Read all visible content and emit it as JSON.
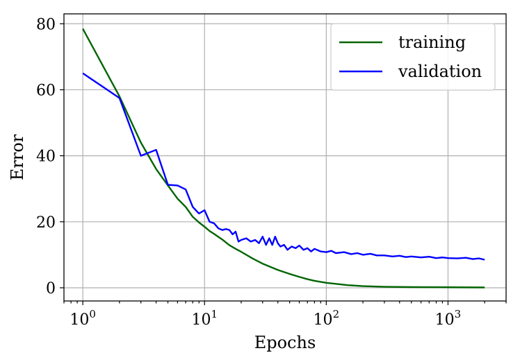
{
  "chart_data": {
    "type": "line",
    "title": "",
    "xlabel": "Epochs",
    "ylabel": "Error",
    "xscale": "log",
    "xlim": [
      0.7,
      3000
    ],
    "ylim": [
      -4,
      83
    ],
    "grid": true,
    "legend_position": "top-right",
    "x_ticks": [
      {
        "base": "10",
        "exp": "0",
        "value": 1
      },
      {
        "base": "10",
        "exp": "1",
        "value": 10
      },
      {
        "base": "10",
        "exp": "2",
        "value": 100
      },
      {
        "base": "10",
        "exp": "3",
        "value": 1000
      }
    ],
    "y_ticks": [
      {
        "label": "0",
        "value": 0
      },
      {
        "label": "20",
        "value": 20
      },
      {
        "label": "40",
        "value": 40
      },
      {
        "label": "60",
        "value": 60
      },
      {
        "label": "80",
        "value": 80
      }
    ],
    "series": [
      {
        "name": "training",
        "color": "#006400",
        "points": [
          [
            1,
            78.5
          ],
          [
            2,
            58
          ],
          [
            3,
            44
          ],
          [
            4,
            36
          ],
          [
            5,
            31
          ],
          [
            6,
            27
          ],
          [
            7,
            24.5
          ],
          [
            8,
            21.5
          ],
          [
            9,
            19.8
          ],
          [
            10,
            18.5
          ],
          [
            11,
            17.2
          ],
          [
            12,
            16.3
          ],
          [
            14,
            14.6
          ],
          [
            16,
            12.9
          ],
          [
            18,
            11.8
          ],
          [
            20,
            10.9
          ],
          [
            25,
            8.8
          ],
          [
            30,
            7.3
          ],
          [
            40,
            5.4
          ],
          [
            50,
            4.2
          ],
          [
            60,
            3.3
          ],
          [
            70,
            2.6
          ],
          [
            80,
            2.1
          ],
          [
            100,
            1.5
          ],
          [
            150,
            0.8
          ],
          [
            200,
            0.5
          ],
          [
            300,
            0.3
          ],
          [
            500,
            0.2
          ],
          [
            1000,
            0.15
          ],
          [
            2000,
            0.1
          ]
        ]
      },
      {
        "name": "validation",
        "color": "#0000ff",
        "points": [
          [
            1,
            65
          ],
          [
            2,
            57.5
          ],
          [
            3,
            40
          ],
          [
            4,
            41.8
          ],
          [
            5,
            31.2
          ],
          [
            6,
            31
          ],
          [
            7,
            29.8
          ],
          [
            8,
            24.5
          ],
          [
            9,
            22.5
          ],
          [
            10,
            23.5
          ],
          [
            11,
            20
          ],
          [
            12,
            19.5
          ],
          [
            13,
            18
          ],
          [
            14,
            17.5
          ],
          [
            15,
            17.8
          ],
          [
            16,
            17.5
          ],
          [
            17,
            16.2
          ],
          [
            18,
            17
          ],
          [
            19,
            14
          ],
          [
            20,
            14.5
          ],
          [
            22,
            15
          ],
          [
            24,
            14
          ],
          [
            26,
            14.5
          ],
          [
            28,
            13.5
          ],
          [
            30,
            15.5
          ],
          [
            32,
            13
          ],
          [
            34,
            15
          ],
          [
            36,
            13
          ],
          [
            38,
            15.5
          ],
          [
            40,
            13.5
          ],
          [
            42,
            12.5
          ],
          [
            45,
            13
          ],
          [
            48,
            11.5
          ],
          [
            52,
            12.5
          ],
          [
            56,
            12
          ],
          [
            60,
            12.8
          ],
          [
            65,
            11.5
          ],
          [
            70,
            12
          ],
          [
            75,
            11
          ],
          [
            80,
            11.8
          ],
          [
            90,
            11
          ],
          [
            100,
            10.8
          ],
          [
            110,
            11.2
          ],
          [
            120,
            10.5
          ],
          [
            140,
            10.8
          ],
          [
            160,
            10.2
          ],
          [
            180,
            10.5
          ],
          [
            200,
            10
          ],
          [
            230,
            10.3
          ],
          [
            260,
            9.8
          ],
          [
            300,
            9.8
          ],
          [
            350,
            9.5
          ],
          [
            400,
            9.7
          ],
          [
            450,
            9.3
          ],
          [
            500,
            9.5
          ],
          [
            600,
            9.2
          ],
          [
            700,
            9.4
          ],
          [
            800,
            9
          ],
          [
            900,
            9.2
          ],
          [
            1000,
            9
          ],
          [
            1200,
            8.9
          ],
          [
            1400,
            9.1
          ],
          [
            1600,
            8.7
          ],
          [
            1800,
            8.9
          ],
          [
            2000,
            8.5
          ]
        ]
      }
    ]
  }
}
